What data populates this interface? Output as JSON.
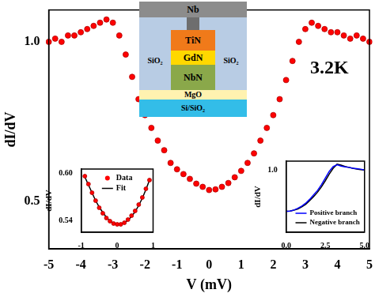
{
  "chart_data": [
    {
      "type": "scatter",
      "xlabel": "V (mV)",
      "ylabel": "dI/dV",
      "annotation": "3.2K",
      "x": [
        -5,
        -4.8,
        -4.6,
        -4.4,
        -4.2,
        -4,
        -3.8,
        -3.6,
        -3.4,
        -3.2,
        -3,
        -2.8,
        -2.6,
        -2.4,
        -2.2,
        -2,
        -1.8,
        -1.6,
        -1.4,
        -1.2,
        -1,
        -0.8,
        -0.6,
        -0.4,
        -0.2,
        0,
        0.2,
        0.4,
        0.6,
        0.8,
        1,
        1.2,
        1.4,
        1.6,
        1.8,
        2,
        2.2,
        2.4,
        2.6,
        2.8,
        3,
        3.2,
        3.4,
        3.6,
        3.8,
        4,
        4.2,
        4.4,
        4.6,
        4.8,
        5
      ],
      "values": [
        1.0,
        1.01,
        1.0,
        1.02,
        1.02,
        1.03,
        1.04,
        1.05,
        1.06,
        1.07,
        1.06,
        1.02,
        0.96,
        0.89,
        0.82,
        0.77,
        0.73,
        0.69,
        0.66,
        0.62,
        0.6,
        0.585,
        0.57,
        0.555,
        0.545,
        0.535,
        0.537,
        0.545,
        0.557,
        0.575,
        0.595,
        0.62,
        0.65,
        0.69,
        0.73,
        0.77,
        0.82,
        0.88,
        0.94,
        1.0,
        1.04,
        1.06,
        1.05,
        1.04,
        1.03,
        1.03,
        1.02,
        1.01,
        1.02,
        1.01,
        1.0
      ],
      "color": "#ff0000",
      "marker": "circle",
      "xlim": [
        -5,
        5
      ],
      "xticks": [
        -5,
        -4,
        -3,
        -2,
        -1,
        0,
        1,
        2,
        3,
        4,
        5
      ],
      "ylim": [
        0.35,
        1.1
      ],
      "yticks": [
        0.5,
        {
          "value": 1,
          "label": "1.0"
        }
      ],
      "grid": false
    },
    {
      "type": "line",
      "ylabel": "dI/dV",
      "x": [
        -0.9,
        -0.8,
        -0.7,
        -0.6,
        -0.5,
        -0.4,
        -0.3,
        -0.2,
        -0.1,
        0,
        0.1,
        0.2,
        0.3,
        0.4,
        0.5,
        0.6,
        0.7,
        0.8,
        0.9
      ],
      "series": [
        {
          "name": "Data",
          "type": "scatter",
          "color": "#ff0000",
          "marker": "circle",
          "values": [
            0.596,
            0.586,
            0.575,
            0.565,
            0.556,
            0.549,
            0.543,
            0.539,
            0.536,
            0.535,
            0.535,
            0.537,
            0.541,
            0.546,
            0.552,
            0.56,
            0.569,
            0.58,
            0.591
          ]
        },
        {
          "name": "Fit",
          "type": "line",
          "color": "#000000",
          "line_style": "solid",
          "values": [
            0.595,
            0.585,
            0.575,
            0.565,
            0.557,
            0.55,
            0.544,
            0.539,
            0.536,
            0.535,
            0.535,
            0.537,
            0.54,
            0.545,
            0.551,
            0.559,
            0.568,
            0.579,
            0.591
          ]
        }
      ],
      "xlim": [
        -1,
        1
      ],
      "xticks": [
        -1,
        0,
        1
      ],
      "ylim": [
        0.525,
        0.605
      ],
      "yticks": [
        0.54,
        {
          "value": 0.6,
          "label": "0.60"
        }
      ],
      "legend": "top",
      "grid": false
    },
    {
      "type": "line",
      "ylabel": "dI/dV",
      "x": [
        0,
        0.25,
        0.5,
        0.75,
        1,
        1.25,
        1.5,
        1.75,
        2,
        2.25,
        2.5,
        2.75,
        3,
        3.25,
        3.5,
        3.75,
        4,
        4.25,
        4.5,
        4.75,
        5
      ],
      "series": [
        {
          "name": "Positive branch",
          "type": "line",
          "color": "#0000ff",
          "line_style": "solid",
          "values": [
            0.535,
            0.538,
            0.55,
            0.57,
            0.595,
            0.627,
            0.67,
            0.72,
            0.77,
            0.835,
            0.91,
            0.985,
            1.04,
            1.06,
            1.045,
            1.035,
            1.03,
            1.02,
            1.015,
            1.01,
            1.0
          ]
        },
        {
          "name": "Negative branch",
          "type": "line",
          "color": "#000000",
          "line_style": "solid",
          "values": [
            0.535,
            0.537,
            0.548,
            0.562,
            0.585,
            0.615,
            0.655,
            0.7,
            0.75,
            0.81,
            0.88,
            0.955,
            1.02,
            1.065,
            1.055,
            1.04,
            1.03,
            1.02,
            1.01,
            1.005,
            1.0
          ]
        }
      ],
      "xlim": [
        0,
        5
      ],
      "xticks": [
        {
          "value": 0,
          "label": "0.0"
        },
        2.5,
        {
          "value": 5,
          "label": "5.0"
        }
      ],
      "ylim": [
        0.3,
        1.1
      ],
      "yticks": [
        {
          "value": 1,
          "label": "1.0"
        }
      ],
      "legend": "bottom right",
      "grid": false
    }
  ],
  "diagram": {
    "top_electrode": "Nb",
    "junction_layers": [
      "TiN",
      "GdN",
      "NbN"
    ],
    "side_labels": [
      "SiO₂",
      "SiO₂"
    ],
    "substrate_layers": [
      "MgO",
      "Si/SiO₂"
    ]
  }
}
